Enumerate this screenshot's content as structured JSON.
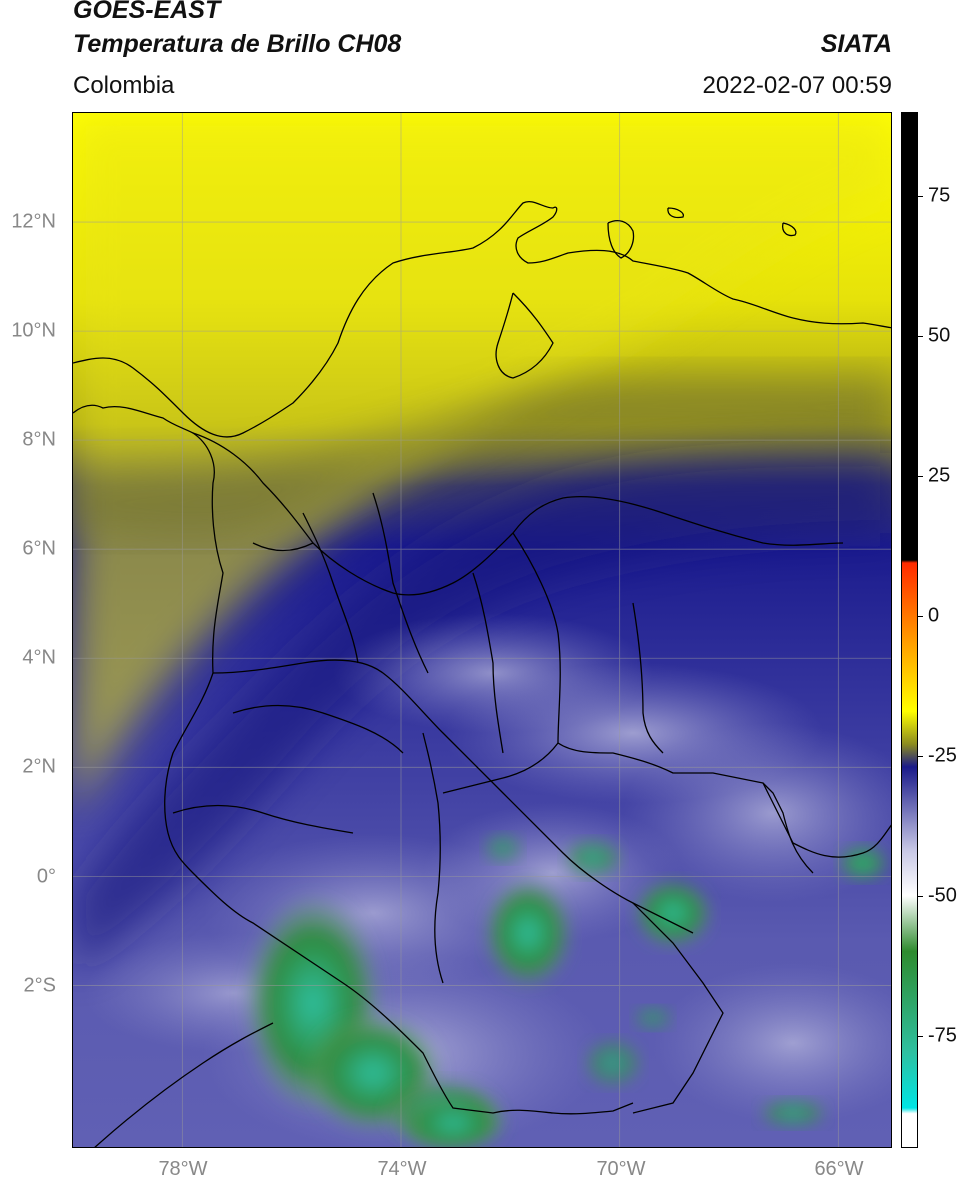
{
  "header": {
    "title_line1": "GOES-EAST",
    "title_line2": "Temperatura de Brillo CH08",
    "organization": "SIATA",
    "region": "Colombia",
    "timestamp": "2022-02-07 00:59"
  },
  "map": {
    "lat_labels": [
      "12°N",
      "10°N",
      "8°N",
      "6°N",
      "4°N",
      "2°N",
      "0°",
      "2°S"
    ],
    "lat_values": [
      12,
      10,
      8,
      6,
      4,
      2,
      0,
      -2
    ],
    "lon_labels": [
      "78°W",
      "74°W",
      "70°W",
      "66°W"
    ],
    "lon_values": [
      -78,
      -74,
      -70,
      -66
    ],
    "extent": {
      "lon_min": -80,
      "lon_max": -65,
      "lat_min": -5,
      "lat_max": 14
    }
  },
  "colorbar": {
    "tick_labels": [
      "75",
      "50",
      "25",
      "0",
      "-25",
      "-50",
      "-75"
    ],
    "tick_values": [
      75,
      50,
      25,
      0,
      -25,
      -50,
      -75
    ],
    "range": [
      -95,
      90
    ],
    "colors": {
      "warm": "#000000",
      "red": "#ff2a00",
      "orange": "#ffa000",
      "yellow": "#ffff00",
      "olive": "#8a8a20",
      "navy": "#1a1a8a",
      "lavender": "#c8c8e6",
      "white": "#ffffff",
      "green": "#2e8b2e",
      "teal": "#2ec0a0",
      "cyan": "#00e5e5"
    }
  }
}
